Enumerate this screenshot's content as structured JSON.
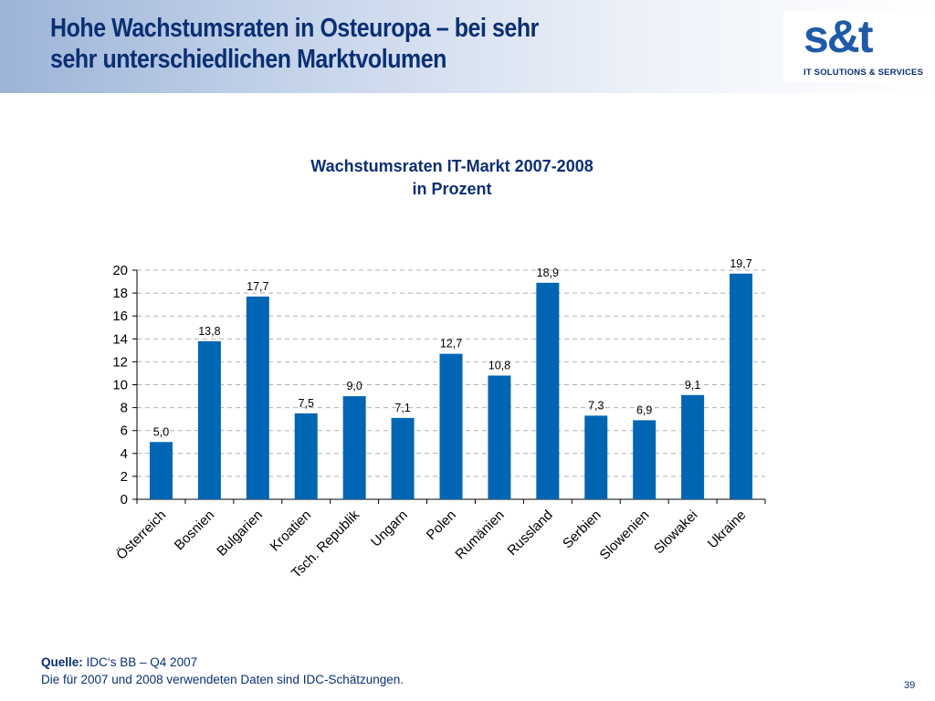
{
  "slide": {
    "title_line1": "Hohe Wachstumsraten in Osteuropa – bei sehr",
    "title_line2": "sehr unterschiedlichen Marktvolumen",
    "page_number": "39"
  },
  "logo": {
    "mark": "s&t",
    "tagline": "IT SOLUTIONS & SERVICES"
  },
  "source": {
    "label": "Quelle:",
    "text": "IDC‘s BB – Q4 2007",
    "note": "Die für 2007 und 2008 verwendeten Daten sind IDC-Schätzungen."
  },
  "colors": {
    "bar": "#0066b3",
    "title": "#0b2f73",
    "grid": "#b0b0b0"
  },
  "chart_data": {
    "type": "bar",
    "title": "Wachstumsraten IT-Markt 2007-2008",
    "subtitle": "in Prozent",
    "xlabel": "",
    "ylabel": "",
    "categories": [
      "Österreich",
      "Bosnien",
      "Bulgarien",
      "Kroatien",
      "Tsch. Republik",
      "Ungarn",
      "Polen",
      "Rumänien",
      "Russland",
      "Serbien",
      "Slowenien",
      "Slowakei",
      "Ukraine"
    ],
    "values": [
      5.0,
      13.8,
      17.7,
      7.5,
      9.0,
      7.1,
      12.7,
      10.8,
      18.9,
      7.3,
      6.9,
      9.1,
      19.7
    ],
    "data_labels": [
      "5,0",
      "13,8",
      "17,7",
      "7,5",
      "9,0",
      "7,1",
      "12,7",
      "10,8",
      "18,9",
      "7,3",
      "6,9",
      "9,1",
      "19,7"
    ],
    "ylim": [
      0,
      20
    ],
    "yticks": [
      "0",
      "2",
      "4",
      "6",
      "8",
      "10",
      "12",
      "14",
      "16",
      "18",
      "20"
    ],
    "grid": true,
    "grid_style": "dashed",
    "legend": "none"
  }
}
